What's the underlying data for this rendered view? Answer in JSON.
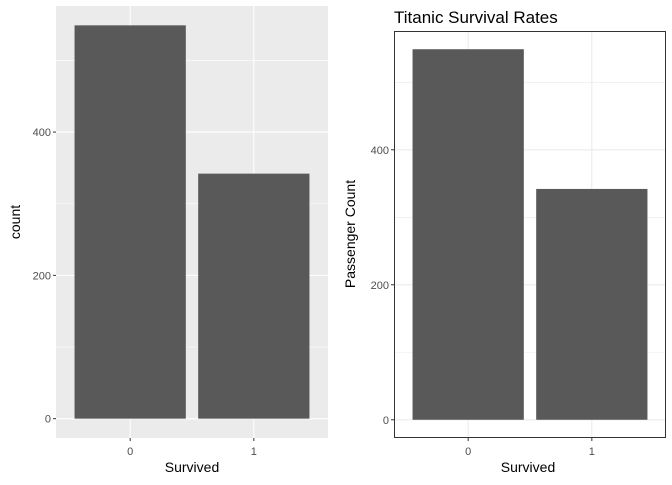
{
  "chart_data": [
    {
      "type": "bar",
      "theme": "grey",
      "title": "",
      "xlabel": "Survived",
      "ylabel": "count",
      "categories": [
        "0",
        "1"
      ],
      "values": [
        549,
        342
      ],
      "ylim": [
        -27,
        576
      ],
      "yticks": [
        0,
        200,
        400
      ],
      "ytick_labels": [
        "0",
        "200",
        "400"
      ],
      "grid": true,
      "bar_color": "#595959",
      "panel_background": "#ebebeb",
      "gridline_color": "#ffffff"
    },
    {
      "type": "bar",
      "theme": "bw",
      "title": "Titanic Survival Rates",
      "xlabel": "Survived",
      "ylabel": "Passenger Count",
      "categories": [
        "0",
        "1"
      ],
      "values": [
        549,
        342
      ],
      "ylim": [
        -27,
        576
      ],
      "yticks": [
        0,
        200,
        400
      ],
      "ytick_labels": [
        "0",
        "200",
        "400"
      ],
      "grid": true,
      "bar_color": "#595959",
      "panel_background": "#ffffff",
      "gridline_color": "#ebebeb",
      "border_color": "#333333"
    }
  ]
}
